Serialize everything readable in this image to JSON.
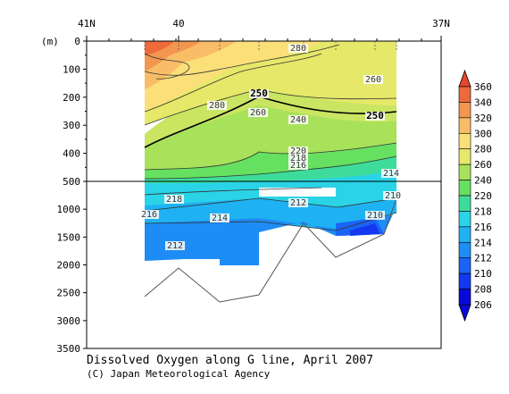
{
  "chart_data": {
    "type": "heatmap",
    "title": "Dissolved Oxygen along G line, April 2007",
    "credit": "(C) Japan Meteorological Agency",
    "ylabel": "(m)",
    "x_ticks": [
      "41N",
      "40",
      "37N"
    ],
    "y_ticks_upper": [
      0,
      100,
      200,
      300,
      400,
      500
    ],
    "y_ticks_lower": [
      1000,
      1500,
      2000,
      2500,
      3000,
      3500
    ],
    "ylim_upper": [
      0,
      500
    ],
    "ylim_lower": [
      500,
      3500
    ],
    "colorbar": {
      "levels": [
        206,
        208,
        210,
        212,
        214,
        216,
        218,
        220,
        240,
        260,
        280,
        300,
        320,
        340,
        360
      ],
      "colors": [
        "#0a0ad8",
        "#1438f0",
        "#1a64f5",
        "#1e8cf5",
        "#1fb2f2",
        "#2ad3e6",
        "#3edc9a",
        "#66e060",
        "#a8e25a",
        "#e6e86a",
        "#fbe07a",
        "#f8bd66",
        "#f29650",
        "#ec6a3c",
        "#e5462e"
      ]
    },
    "contour_labels": [
      {
        "text": "280"
      },
      {
        "text": "260"
      },
      {
        "text": "250"
      },
      {
        "text": "280"
      },
      {
        "text": "260"
      },
      {
        "text": "240"
      },
      {
        "text": "250"
      },
      {
        "text": "220"
      },
      {
        "text": "218"
      },
      {
        "text": "216"
      },
      {
        "text": "214"
      },
      {
        "text": "210"
      },
      {
        "text": "218"
      },
      {
        "text": "216"
      },
      {
        "text": "214"
      },
      {
        "text": "212"
      },
      {
        "text": "210"
      },
      {
        "text": "212"
      }
    ]
  }
}
